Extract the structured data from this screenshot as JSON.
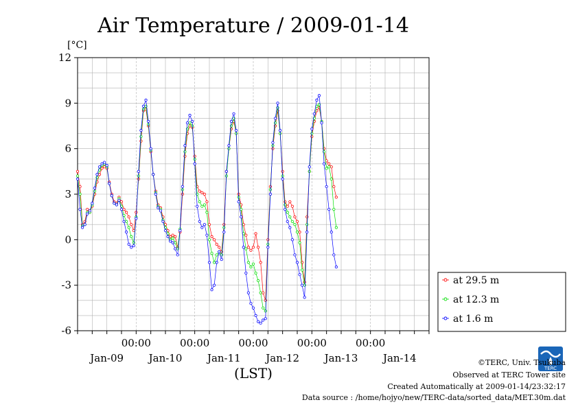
{
  "chart_data": {
    "type": "line",
    "title": "Air Temperature / 2009-01-14",
    "ylabel": "[°C]",
    "xlabel": "(LST)",
    "ylim": [
      -6,
      12
    ],
    "yticks": [
      12,
      9,
      6,
      3,
      0,
      -3,
      -6
    ],
    "xlim_hours": [
      0,
      144
    ],
    "x_time_ticks": [
      "00:00",
      "00:00",
      "00:00",
      "00:00",
      "00:00"
    ],
    "x_day_labels": [
      "Jan-09",
      "Jan-10",
      "Jan-11",
      "Jan-12",
      "Jan-13",
      "Jan-14"
    ],
    "grid": true,
    "legend_position": "right",
    "series": [
      {
        "name": "at 29.5 m",
        "color": "#ff0000",
        "points": [
          [
            0,
            4.5
          ],
          [
            1,
            3.5
          ],
          [
            2,
            1.0
          ],
          [
            3,
            1.2
          ],
          [
            4,
            2.0
          ],
          [
            5,
            1.8
          ],
          [
            6,
            2.2
          ],
          [
            7,
            3.0
          ],
          [
            8,
            3.8
          ],
          [
            9,
            4.3
          ],
          [
            10,
            4.7
          ],
          [
            11,
            4.8
          ],
          [
            12,
            4.7
          ],
          [
            13,
            3.8
          ],
          [
            14,
            3.0
          ],
          [
            15,
            2.5
          ],
          [
            16,
            2.4
          ],
          [
            17,
            2.8
          ],
          [
            18,
            2.5
          ],
          [
            19,
            2.0
          ],
          [
            20,
            1.8
          ],
          [
            21,
            1.5
          ],
          [
            22,
            1.0
          ],
          [
            23,
            0.6
          ],
          [
            24,
            1.8
          ],
          [
            25,
            4.0
          ],
          [
            26,
            6.5
          ],
          [
            27,
            8.5
          ],
          [
            28,
            8.6
          ],
          [
            29,
            7.5
          ],
          [
            30,
            5.8
          ],
          [
            31,
            4.3
          ],
          [
            32,
            3.2
          ],
          [
            33,
            2.3
          ],
          [
            34,
            2.1
          ],
          [
            35,
            1.5
          ],
          [
            36,
            1.0
          ],
          [
            37,
            0.6
          ],
          [
            38,
            0.2
          ],
          [
            39,
            0.3
          ],
          [
            40,
            0.2
          ],
          [
            41,
            -0.5
          ],
          [
            42,
            0.5
          ],
          [
            43,
            3.0
          ],
          [
            44,
            5.5
          ],
          [
            45,
            7.0
          ],
          [
            46,
            7.5
          ],
          [
            47,
            7.4
          ],
          [
            48,
            5.5
          ],
          [
            49,
            3.5
          ],
          [
            50,
            3.2
          ],
          [
            51,
            3.1
          ],
          [
            52,
            3.0
          ],
          [
            53,
            2.5
          ],
          [
            54,
            1.0
          ],
          [
            55,
            0.2
          ],
          [
            56,
            0.0
          ],
          [
            57,
            -0.3
          ],
          [
            58,
            -0.5
          ],
          [
            59,
            -0.8
          ],
          [
            60,
            1.0
          ],
          [
            61,
            4.5
          ],
          [
            62,
            6.0
          ],
          [
            63,
            7.3
          ],
          [
            64,
            7.8
          ],
          [
            65,
            7.0
          ],
          [
            66,
            3.0
          ],
          [
            67,
            2.3
          ],
          [
            68,
            1.0
          ],
          [
            69,
            0.3
          ],
          [
            70,
            -0.5
          ],
          [
            71,
            -0.7
          ],
          [
            72,
            -0.5
          ],
          [
            73,
            0.4
          ],
          [
            74,
            -0.5
          ],
          [
            75,
            -1.5
          ],
          [
            76,
            -3.5
          ],
          [
            77,
            -4.0
          ],
          [
            78,
            0.0
          ],
          [
            79,
            3.5
          ],
          [
            80,
            6.0
          ],
          [
            81,
            7.5
          ],
          [
            82,
            8.5
          ],
          [
            83,
            7.0
          ],
          [
            84,
            4.5
          ],
          [
            85,
            2.5
          ],
          [
            86,
            2.2
          ],
          [
            87,
            2.5
          ],
          [
            88,
            2.2
          ],
          [
            89,
            1.5
          ],
          [
            90,
            1.2
          ],
          [
            91,
            0.5
          ],
          [
            92,
            -1.5
          ],
          [
            93,
            -2.8
          ],
          [
            94,
            1.5
          ],
          [
            95,
            4.5
          ],
          [
            96,
            6.8
          ],
          [
            97,
            7.8
          ],
          [
            98,
            8.5
          ],
          [
            99,
            8.7
          ],
          [
            100,
            7.8
          ],
          [
            101,
            6.0
          ],
          [
            102,
            5.2
          ],
          [
            103,
            5.0
          ],
          [
            104,
            4.8
          ],
          [
            105,
            3.5
          ],
          [
            106,
            2.8
          ]
        ]
      },
      {
        "name": "at 12.3 m",
        "color": "#00dd00",
        "points": [
          [
            0,
            4.2
          ],
          [
            1,
            3.0
          ],
          [
            2,
            0.9
          ],
          [
            3,
            1.0
          ],
          [
            4,
            1.8
          ],
          [
            5,
            1.8
          ],
          [
            6,
            2.3
          ],
          [
            7,
            3.2
          ],
          [
            8,
            4.1
          ],
          [
            9,
            4.6
          ],
          [
            10,
            4.9
          ],
          [
            11,
            5.0
          ],
          [
            12,
            4.8
          ],
          [
            13,
            3.7
          ],
          [
            14,
            2.9
          ],
          [
            15,
            2.4
          ],
          [
            16,
            2.3
          ],
          [
            17,
            2.7
          ],
          [
            18,
            2.2
          ],
          [
            19,
            1.6
          ],
          [
            20,
            1.2
          ],
          [
            21,
            0.8
          ],
          [
            22,
            0.2
          ],
          [
            23,
            -0.2
          ],
          [
            24,
            1.5
          ],
          [
            25,
            4.2
          ],
          [
            26,
            6.8
          ],
          [
            27,
            8.6
          ],
          [
            28,
            8.8
          ],
          [
            29,
            7.6
          ],
          [
            30,
            5.9
          ],
          [
            31,
            4.3
          ],
          [
            32,
            3.1
          ],
          [
            33,
            2.2
          ],
          [
            34,
            2.0
          ],
          [
            35,
            1.3
          ],
          [
            36,
            0.8
          ],
          [
            37,
            0.4
          ],
          [
            38,
            0.0
          ],
          [
            39,
            0.1
          ],
          [
            40,
            -0.2
          ],
          [
            41,
            -0.6
          ],
          [
            42,
            0.7
          ],
          [
            43,
            3.3
          ],
          [
            44,
            5.8
          ],
          [
            45,
            7.3
          ],
          [
            46,
            7.7
          ],
          [
            47,
            7.5
          ],
          [
            48,
            5.3
          ],
          [
            49,
            3.0
          ],
          [
            50,
            2.5
          ],
          [
            51,
            2.2
          ],
          [
            52,
            2.3
          ],
          [
            53,
            1.8
          ],
          [
            54,
            0.0
          ],
          [
            55,
            -0.9
          ],
          [
            56,
            -1.5
          ],
          [
            57,
            -1.0
          ],
          [
            58,
            -0.8
          ],
          [
            59,
            -1.0
          ],
          [
            60,
            0.8
          ],
          [
            61,
            4.2
          ],
          [
            62,
            6.0
          ],
          [
            63,
            7.5
          ],
          [
            64,
            8.0
          ],
          [
            65,
            7.0
          ],
          [
            66,
            2.8
          ],
          [
            67,
            2.0
          ],
          [
            68,
            0.4
          ],
          [
            69,
            -0.6
          ],
          [
            70,
            -1.5
          ],
          [
            71,
            -1.8
          ],
          [
            72,
            -1.6
          ],
          [
            73,
            -2.2
          ],
          [
            74,
            -2.7
          ],
          [
            75,
            -3.5
          ],
          [
            76,
            -4.5
          ],
          [
            77,
            -4.7
          ],
          [
            78,
            -0.3
          ],
          [
            79,
            3.3
          ],
          [
            80,
            6.2
          ],
          [
            81,
            7.7
          ],
          [
            82,
            8.7
          ],
          [
            83,
            7.0
          ],
          [
            84,
            4.2
          ],
          [
            85,
            2.3
          ],
          [
            86,
            1.8
          ],
          [
            87,
            1.5
          ],
          [
            88,
            1.2
          ],
          [
            89,
            1.0
          ],
          [
            90,
            0.5
          ],
          [
            91,
            -0.2
          ],
          [
            92,
            -2.0
          ],
          [
            93,
            -3.0
          ],
          [
            94,
            1.0
          ],
          [
            95,
            4.5
          ],
          [
            96,
            7.0
          ],
          [
            97,
            8.0
          ],
          [
            98,
            8.8
          ],
          [
            99,
            8.9
          ],
          [
            100,
            7.8
          ],
          [
            101,
            5.8
          ],
          [
            102,
            4.7
          ],
          [
            103,
            4.8
          ],
          [
            104,
            4.0
          ],
          [
            105,
            2.0
          ],
          [
            106,
            0.8
          ]
        ]
      },
      {
        "name": "at 1.6 m",
        "color": "#0000ff",
        "points": [
          [
            0,
            4.0
          ],
          [
            1,
            2.0
          ],
          [
            2,
            0.8
          ],
          [
            3,
            1.0
          ],
          [
            4,
            1.7
          ],
          [
            5,
            1.9
          ],
          [
            6,
            2.4
          ],
          [
            7,
            3.4
          ],
          [
            8,
            4.3
          ],
          [
            9,
            4.8
          ],
          [
            10,
            5.0
          ],
          [
            11,
            5.1
          ],
          [
            12,
            4.9
          ],
          [
            13,
            3.7
          ],
          [
            14,
            2.9
          ],
          [
            15,
            2.4
          ],
          [
            16,
            2.3
          ],
          [
            17,
            2.6
          ],
          [
            18,
            2.0
          ],
          [
            19,
            1.2
          ],
          [
            20,
            0.5
          ],
          [
            21,
            -0.3
          ],
          [
            22,
            -0.5
          ],
          [
            23,
            -0.4
          ],
          [
            24,
            1.4
          ],
          [
            25,
            4.5
          ],
          [
            26,
            7.2
          ],
          [
            27,
            8.8
          ],
          [
            28,
            9.2
          ],
          [
            29,
            7.8
          ],
          [
            30,
            6.0
          ],
          [
            31,
            4.3
          ],
          [
            32,
            3.0
          ],
          [
            33,
            2.1
          ],
          [
            34,
            1.9
          ],
          [
            35,
            1.2
          ],
          [
            36,
            0.6
          ],
          [
            37,
            0.2
          ],
          [
            38,
            -0.1
          ],
          [
            39,
            -0.2
          ],
          [
            40,
            -0.6
          ],
          [
            41,
            -1.0
          ],
          [
            42,
            0.6
          ],
          [
            43,
            3.5
          ],
          [
            44,
            6.2
          ],
          [
            45,
            7.7
          ],
          [
            46,
            8.2
          ],
          [
            47,
            7.8
          ],
          [
            48,
            5.0
          ],
          [
            49,
            2.2
          ],
          [
            50,
            1.2
          ],
          [
            51,
            0.8
          ],
          [
            52,
            1.0
          ],
          [
            53,
            0.3
          ],
          [
            54,
            -1.5
          ],
          [
            55,
            -3.3
          ],
          [
            56,
            -3.0
          ],
          [
            57,
            -1.5
          ],
          [
            58,
            -0.8
          ],
          [
            59,
            -1.3
          ],
          [
            60,
            0.5
          ],
          [
            61,
            4.5
          ],
          [
            62,
            6.2
          ],
          [
            63,
            7.8
          ],
          [
            64,
            8.3
          ],
          [
            65,
            7.2
          ],
          [
            66,
            2.5
          ],
          [
            67,
            1.5
          ],
          [
            68,
            -0.5
          ],
          [
            69,
            -2.2
          ],
          [
            70,
            -3.5
          ],
          [
            71,
            -4.2
          ],
          [
            72,
            -4.5
          ],
          [
            73,
            -5.0
          ],
          [
            74,
            -5.4
          ],
          [
            75,
            -5.5
          ],
          [
            76,
            -5.3
          ],
          [
            77,
            -5.2
          ],
          [
            78,
            -0.5
          ],
          [
            79,
            3.0
          ],
          [
            80,
            6.4
          ],
          [
            81,
            8.0
          ],
          [
            82,
            9.0
          ],
          [
            83,
            7.2
          ],
          [
            84,
            4.0
          ],
          [
            85,
            2.0
          ],
          [
            86,
            1.2
          ],
          [
            87,
            0.8
          ],
          [
            88,
            0.0
          ],
          [
            89,
            -1.0
          ],
          [
            90,
            -1.5
          ],
          [
            91,
            -2.3
          ],
          [
            92,
            -3.0
          ],
          [
            93,
            -3.8
          ],
          [
            94,
            0.5
          ],
          [
            95,
            4.8
          ],
          [
            96,
            7.3
          ],
          [
            97,
            8.3
          ],
          [
            98,
            9.2
          ],
          [
            99,
            9.5
          ],
          [
            100,
            7.7
          ],
          [
            101,
            5.0
          ],
          [
            102,
            3.5
          ],
          [
            103,
            2.0
          ],
          [
            104,
            0.5
          ],
          [
            105,
            -1.0
          ],
          [
            106,
            -1.8
          ]
        ]
      }
    ]
  },
  "footer": {
    "copyright": "©TERC, Univ. Tsukuba",
    "observed": "Observed at TERC Tower site",
    "created": "Created Automatically at 2009-01-14/23:32:17",
    "source": "Data source : /home/hojyo/new/TERC-data/sorted_data/MET.30m.dat"
  },
  "logo": {
    "text": "TERC",
    "color": "#1a66b8"
  }
}
